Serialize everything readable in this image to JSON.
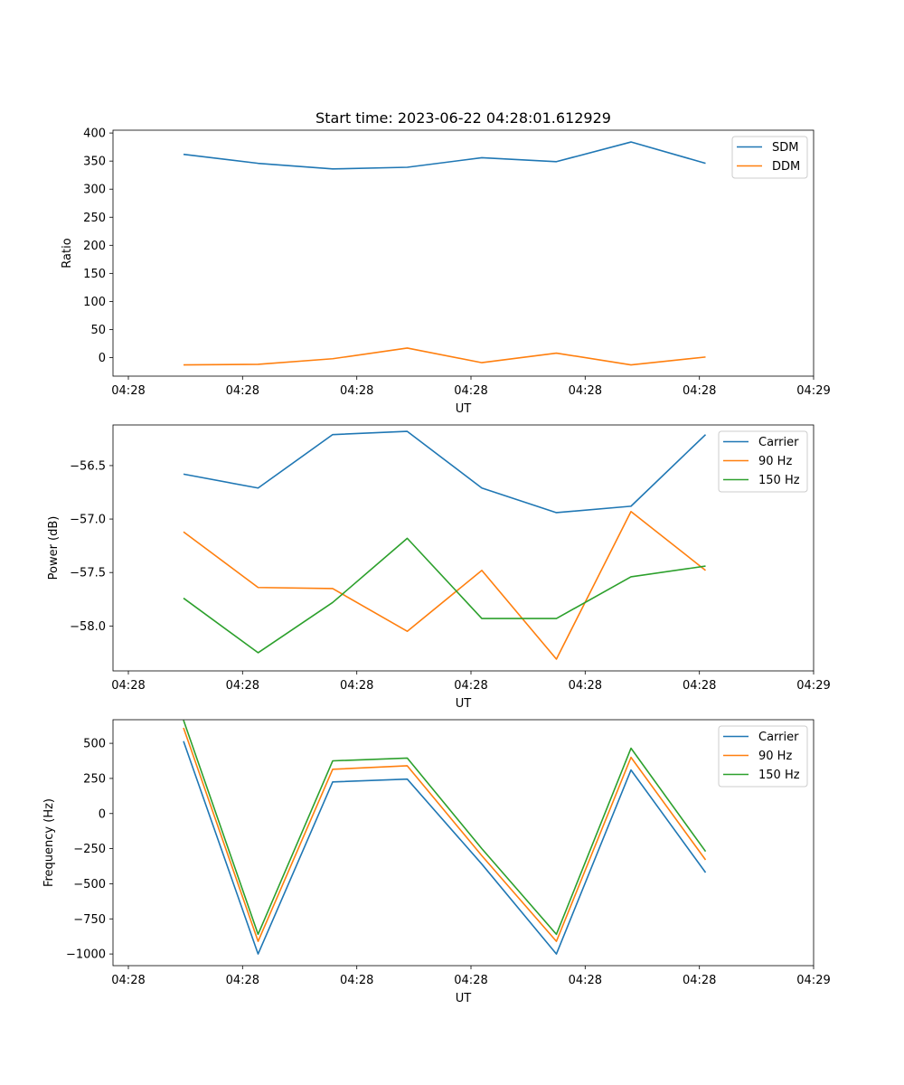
{
  "title": "Start time: 2023-06-22 04:28:01.612929",
  "chart_data": [
    {
      "type": "line",
      "title": "Start time: 2023-06-22 04:28:01.612929",
      "xlabel": "UT",
      "ylabel": "Ratio",
      "x_tick_labels": [
        "04:28",
        "04:28",
        "04:28",
        "04:28",
        "04:28",
        "04:28",
        "04:29"
      ],
      "y_ticks": [
        0,
        50,
        100,
        150,
        200,
        250,
        300,
        350,
        400
      ],
      "ylim": [
        -33,
        405
      ],
      "legend_position": "top-right",
      "grid": false,
      "series": [
        {
          "name": "SDM",
          "color": "#1f77b4",
          "values": [
            362,
            346,
            336,
            339,
            356,
            349,
            384,
            346
          ]
        },
        {
          "name": "DDM",
          "color": "#ff7f0e",
          "values": [
            -13,
            -12,
            -2,
            17,
            -9,
            8,
            -13,
            1
          ]
        }
      ]
    },
    {
      "type": "line",
      "xlabel": "UT",
      "ylabel": "Power (dB)",
      "x_tick_labels": [
        "04:28",
        "04:28",
        "04:28",
        "04:28",
        "04:28",
        "04:28",
        "04:29"
      ],
      "y_ticks": [
        -58.0,
        -57.5,
        -57.0,
        -56.5
      ],
      "y_tick_labels": [
        "−58.0",
        "−57.5",
        "−57.0",
        "−56.5"
      ],
      "ylim": [
        -58.42,
        -56.12
      ],
      "legend_position": "top-right",
      "grid": false,
      "series": [
        {
          "name": "Carrier",
          "color": "#1f77b4",
          "values": [
            -56.58,
            -56.71,
            -56.21,
            -56.18,
            -56.71,
            -56.94,
            -56.88,
            -56.21
          ]
        },
        {
          "name": "90 Hz",
          "color": "#ff7f0e",
          "values": [
            -57.12,
            -57.64,
            -57.65,
            -58.05,
            -57.48,
            -58.31,
            -56.93,
            -57.48
          ]
        },
        {
          "name": "150 Hz",
          "color": "#2ca02c",
          "values": [
            -57.74,
            -58.25,
            -57.78,
            -57.18,
            -57.93,
            -57.93,
            -57.54,
            -57.44
          ]
        }
      ]
    },
    {
      "type": "line",
      "xlabel": "UT",
      "ylabel": "Frequency (Hz)",
      "x_tick_labels": [
        "04:28",
        "04:28",
        "04:28",
        "04:28",
        "04:28",
        "04:28",
        "04:29"
      ],
      "y_ticks": [
        -1000,
        -750,
        -500,
        -250,
        0,
        250,
        500
      ],
      "y_tick_labels": [
        "−1000",
        "−750",
        "−500",
        "−250",
        "0",
        "250",
        "500"
      ],
      "ylim": [
        -1083,
        668
      ],
      "legend_position": "top-right",
      "grid": false,
      "series": [
        {
          "name": "Carrier",
          "color": "#1f77b4",
          "values": [
            515,
            -1000,
            225,
            245,
            -360,
            -1000,
            310,
            -420
          ]
        },
        {
          "name": "90 Hz",
          "color": "#ff7f0e",
          "values": [
            610,
            -910,
            315,
            340,
            -300,
            -910,
            400,
            -330
          ]
        },
        {
          "name": "150 Hz",
          "color": "#2ca02c",
          "values": [
            665,
            -860,
            375,
            395,
            -250,
            -860,
            465,
            -270
          ]
        }
      ]
    }
  ]
}
